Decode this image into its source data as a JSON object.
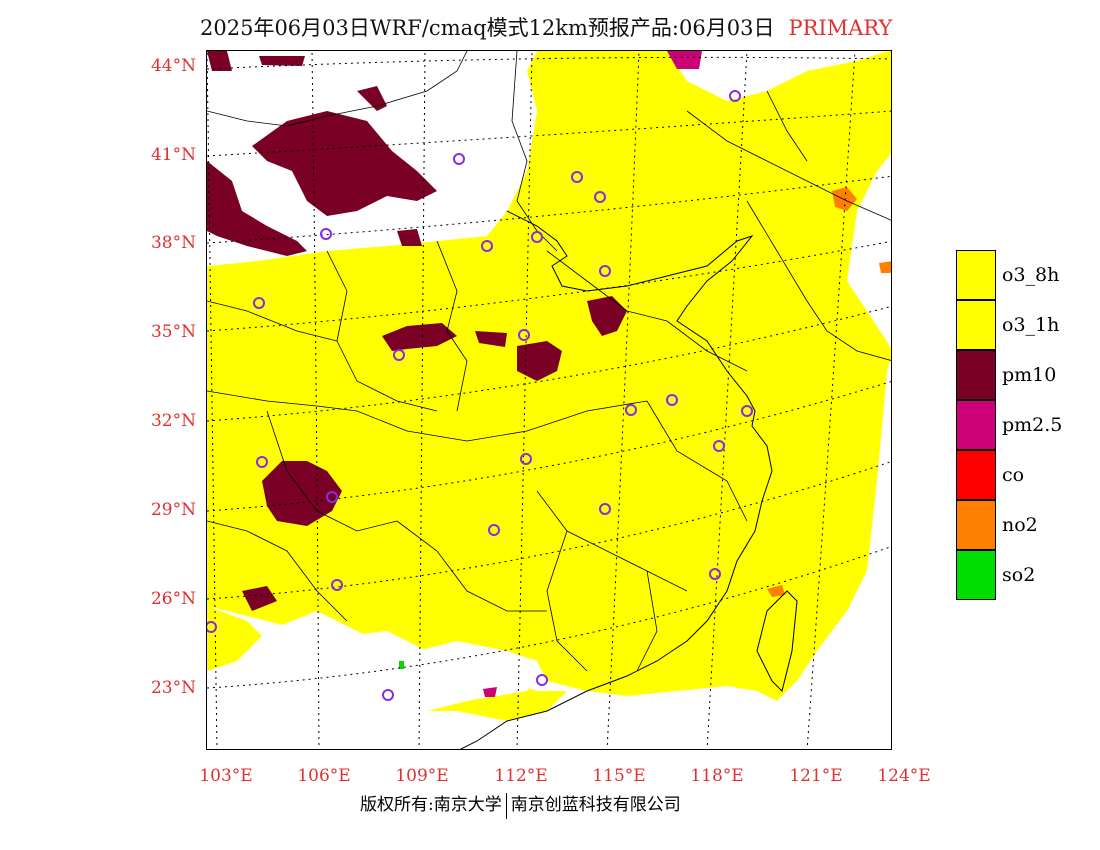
{
  "title": {
    "text": "2025年06月03日WRF/cmaq模式12km预报产品:06月03日",
    "tag": "PRIMARY"
  },
  "colors": {
    "o3": "#ffff00",
    "pm10": "#7a0026",
    "pm25": "#cc0077",
    "co": "#ff0000",
    "no2": "#ff7f00",
    "so2": "#00dd00",
    "station": "#8a2be2",
    "label": "#e03030"
  },
  "lat_labels": [
    "44°N",
    "41°N",
    "38°N",
    "35°N",
    "32°N",
    "29°N",
    "26°N",
    "23°N"
  ],
  "lon_labels": [
    "103°E",
    "106°E",
    "109°E",
    "112°E",
    "115°E",
    "118°E",
    "121°E",
    "124°E"
  ],
  "legend": [
    {
      "label": "o3_8h",
      "color": "#ffff00"
    },
    {
      "label": "o3_1h",
      "color": "#ffff00"
    },
    {
      "label": "pm10",
      "color": "#7a0026"
    },
    {
      "label": "pm2.5",
      "color": "#cc0077"
    },
    {
      "label": "co",
      "color": "#ff0000"
    },
    {
      "label": "no2",
      "color": "#ff7f00"
    },
    {
      "label": "so2",
      "color": "#00dd00"
    }
  ],
  "footer": {
    "left": "版权所有:南京大学",
    "right": "南京创蓝科技有限公司"
  }
}
